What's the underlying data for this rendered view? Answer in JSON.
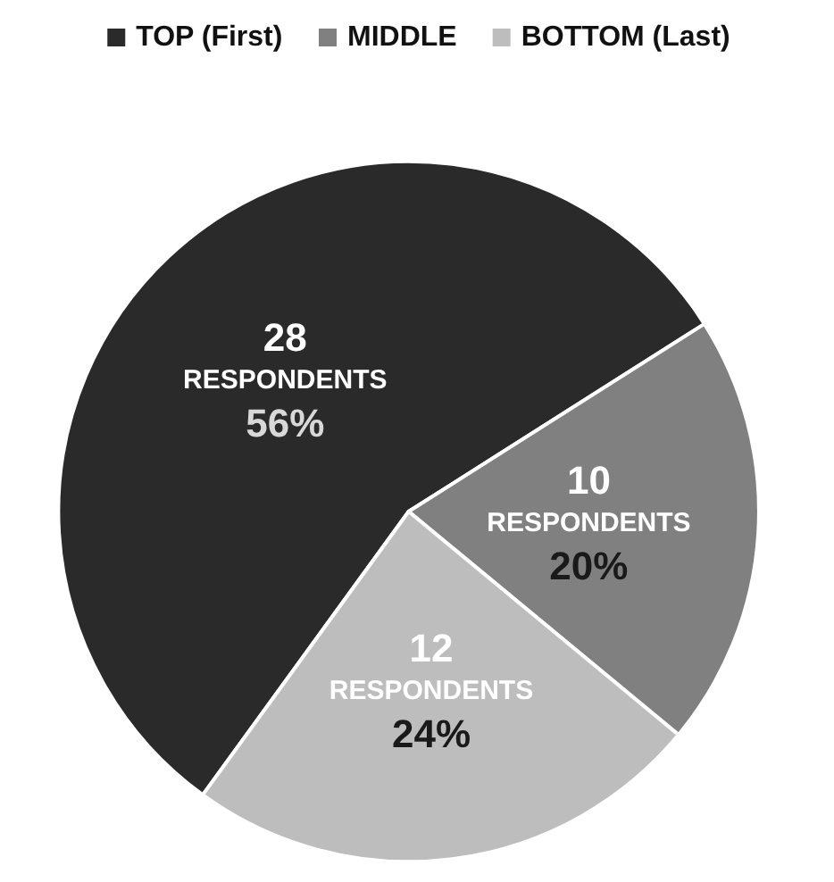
{
  "chart_data": {
    "type": "pie",
    "categories": [
      "TOP (First)",
      "MIDDLE",
      "BOTTOM (Last)"
    ],
    "values": [
      28,
      10,
      12
    ],
    "colors": [
      "#2a2a2a",
      "#808080",
      "#bdbdbd"
    ],
    "value_labels": [
      "28\nRESPONDENTS\n56%",
      "10\nRESPONDENTS\n20%",
      "12\nRESPONDENTS\n24%"
    ],
    "legend": "top"
  }
}
